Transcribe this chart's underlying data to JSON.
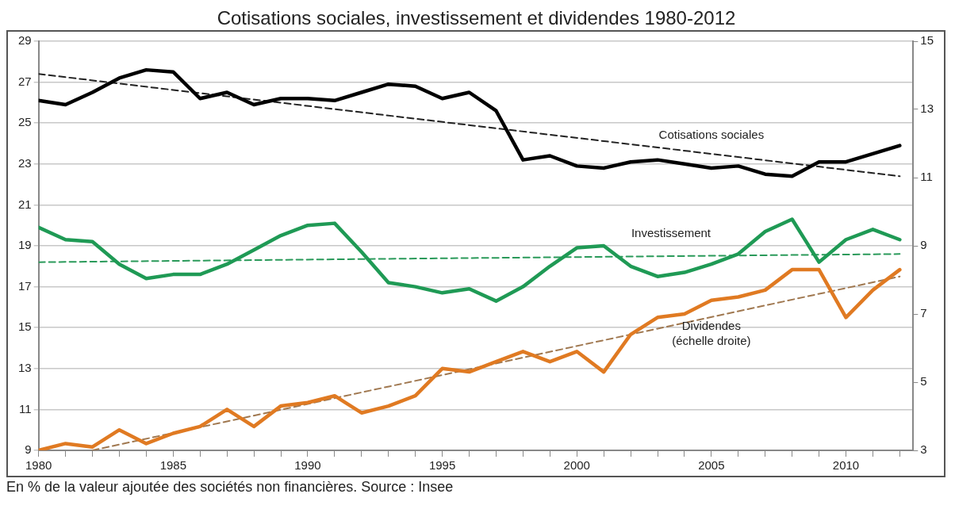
{
  "chart_data": {
    "type": "line",
    "title": "Cotisations sociales, investissement et dividendes 1980-2012",
    "annotations": [
      "En % de la valeur ajoutée des sociétés non financières. Source : Insee"
    ],
    "x": [
      1980,
      1981,
      1982,
      1983,
      1984,
      1985,
      1986,
      1987,
      1988,
      1989,
      1990,
      1991,
      1992,
      1993,
      1994,
      1995,
      1996,
      1997,
      1998,
      1999,
      2000,
      2001,
      2002,
      2003,
      2004,
      2005,
      2006,
      2007,
      2008,
      2009,
      2010,
      2011,
      2012
    ],
    "xlim": [
      1980,
      2012.5
    ],
    "xticks": [
      1980,
      {
        "value": 1981,
        "label": null
      },
      {
        "value": 1982,
        "label": null
      },
      {
        "value": 1983,
        "label": null
      },
      {
        "value": 1984,
        "label": null
      },
      1985,
      {
        "value": 1986,
        "label": null
      },
      {
        "value": 1987,
        "label": null
      },
      {
        "value": 1988,
        "label": null
      },
      {
        "value": 1989,
        "label": null
      },
      1990,
      {
        "value": 1991,
        "label": null
      },
      {
        "value": 1992,
        "label": null
      },
      {
        "value": 1993,
        "label": null
      },
      {
        "value": 1994,
        "label": null
      },
      1995,
      {
        "value": 1996,
        "label": null
      },
      {
        "value": 1997,
        "label": null
      },
      {
        "value": 1998,
        "label": null
      },
      {
        "value": 1999,
        "label": null
      },
      2000,
      {
        "value": 2001,
        "label": null
      },
      {
        "value": 2002,
        "label": null
      },
      {
        "value": 2003,
        "label": null
      },
      {
        "value": 2004,
        "label": null
      },
      2005,
      {
        "value": 2006,
        "label": null
      },
      {
        "value": 2007,
        "label": null
      },
      {
        "value": 2008,
        "label": null
      },
      {
        "value": 2009,
        "label": null
      },
      2010,
      {
        "value": 2011,
        "label": null
      },
      {
        "value": 2012,
        "label": null
      }
    ],
    "ylim": [
      9,
      29
    ],
    "yticks": [
      9,
      11,
      13,
      15,
      17,
      19,
      21,
      23,
      25,
      27,
      29
    ],
    "y2lim": [
      3,
      15
    ],
    "y2ticks": [
      3,
      5,
      7,
      9,
      11,
      13,
      15
    ],
    "grid": "y",
    "legend": false,
    "marker": "none",
    "series": [
      {
        "name": "Cotisations sociales",
        "color": "#000000",
        "values": [
          26.1,
          25.9,
          26.5,
          27.2,
          27.6,
          27.5,
          26.2,
          26.5,
          25.9,
          26.2,
          26.2,
          26.1,
          26.5,
          26.9,
          26.8,
          26.2,
          26.5,
          25.6,
          23.2,
          23.4,
          22.9,
          22.8,
          23.1,
          23.2,
          23.0,
          22.8,
          22.9,
          22.5,
          22.4,
          23.1,
          23.1,
          23.5,
          23.9
        ]
      },
      {
        "name": "Investissement",
        "color": "#1f9a55",
        "values": [
          19.9,
          19.3,
          19.2,
          18.1,
          17.4,
          17.6,
          17.6,
          18.1,
          18.8,
          19.5,
          20.0,
          20.1,
          18.7,
          17.2,
          17.0,
          16.7,
          16.9,
          16.3,
          17.0,
          18.0,
          18.9,
          19.0,
          18.0,
          17.5,
          17.7,
          18.1,
          18.6,
          19.7,
          20.3,
          18.2,
          19.3,
          19.8,
          19.3
        ]
      },
      {
        "name": "Dividendes (échelle droite)",
        "color": "#e07a22",
        "axis": "y2",
        "values": [
          3.0,
          3.2,
          3.1,
          3.6,
          3.2,
          3.5,
          3.7,
          4.2,
          3.7,
          4.3,
          4.4,
          4.6,
          4.1,
          4.3,
          4.6,
          5.4,
          5.3,
          5.6,
          5.9,
          5.6,
          5.9,
          5.3,
          6.4,
          6.9,
          7.0,
          7.4,
          7.5,
          7.7,
          8.3,
          8.3,
          6.9,
          7.7,
          8.3
        ]
      },
      {
        "type": "line",
        "color": "#222222",
        "line_style": "dashed",
        "x": [
          1980,
          2012
        ],
        "values": [
          27.4,
          22.4
        ]
      },
      {
        "type": "line",
        "color": "#2a9a5a",
        "line_style": "dashed",
        "x": [
          1980,
          2012
        ],
        "values": [
          18.2,
          18.6
        ]
      },
      {
        "type": "line",
        "color": "#a07850",
        "line_style": "dashed",
        "axis": "y2",
        "x": [
          1982,
          2012
        ],
        "values": [
          3.0,
          8.1
        ]
      }
    ]
  }
}
